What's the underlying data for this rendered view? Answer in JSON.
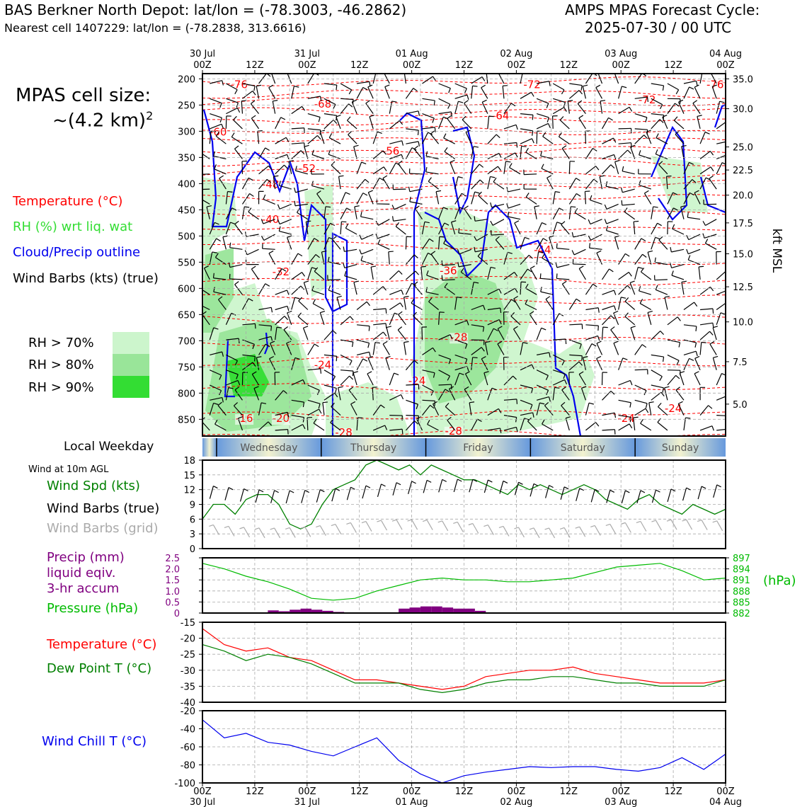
{
  "header": {
    "title_left": "BAS Berkner North Depot: lat/lon = (-78.3003, -46.2862)",
    "subtitle_left": "Nearest cell 1407229: lat/lon = (-78.2838, 313.6616)",
    "title_right_1": "AMPS MPAS Forecast Cycle:",
    "title_right_2": "2025-07-30 / 00 UTC"
  },
  "left_panel": {
    "cell_size_line1": "MPAS cell size:",
    "cell_size_line2": "~(4.2 km)",
    "cell_size_sup": "2",
    "legend_temperature": "Temperature (°C)",
    "legend_rh": "RH (%) wrt liq. wat",
    "legend_cloud": "Cloud/Precip outline",
    "legend_wind": "Wind Barbs (kts) (true)",
    "rh_levels": [
      "RH > 70%",
      "RH > 80%",
      "RH > 90%"
    ],
    "local_weekday": "Local Weekday",
    "wind_10m": "Wind at 10m AGL",
    "wind_spd": "Wind Spd (kts)",
    "wind_barbs_true": "Wind Barbs (true)",
    "wind_barbs_grid": "Wind Barbs (grid)",
    "precip_1": "Precip (mm)",
    "precip_2": "liquid eqiv.",
    "precip_3": "3-hr accum",
    "pressure": "Pressure (hPa)",
    "temperature2": "Temperature (°C)",
    "dewpoint": "Dew Point T (°C)",
    "windchill": "Wind Chill T (°C)"
  },
  "colors": {
    "temperature": "#ff0000",
    "rh_text": "#33dd33",
    "cloud": "#0000ee",
    "rh70": "#ccf5cc",
    "rh80": "#99e599",
    "rh90": "#33dd33",
    "wind_spd": "#008000",
    "grid_barb": "#aaaaaa",
    "precip": "#800080",
    "pressure": "#00bb00",
    "dewpoint": "#008000",
    "windchill": "#0000ee"
  },
  "chart_data": [
    {
      "type": "time-height",
      "x_top_labels": [
        {
          "top": "30 Jul",
          "bottom": "00Z"
        },
        {
          "top": "",
          "bottom": "12Z"
        },
        {
          "top": "31 Jul",
          "bottom": "00Z"
        },
        {
          "top": "",
          "bottom": "12Z"
        },
        {
          "top": "01 Aug",
          "bottom": "00Z"
        },
        {
          "top": "",
          "bottom": "12Z"
        },
        {
          "top": "02 Aug",
          "bottom": "00Z"
        },
        {
          "top": "",
          "bottom": "12Z"
        },
        {
          "top": "03 Aug",
          "bottom": "00Z"
        },
        {
          "top": "",
          "bottom": "12Z"
        },
        {
          "top": "04 Aug",
          "bottom": "00Z"
        }
      ],
      "pressure_ticks": [
        "200",
        "250",
        "300",
        "350",
        "400",
        "450",
        "500",
        "550",
        "600",
        "650",
        "700",
        "750",
        "800",
        "850"
      ],
      "height_ticks": [
        {
          "p": 200,
          "label": "35.0"
        },
        {
          "p": 257,
          "label": "30.0"
        },
        {
          "p": 330,
          "label": "25.0"
        },
        {
          "p": 374,
          "label": "22.5"
        },
        {
          "p": 422,
          "label": "20.0"
        },
        {
          "p": 475,
          "label": "17.5"
        },
        {
          "p": 534,
          "label": "15.0"
        },
        {
          "p": 597,
          "label": "12.5"
        },
        {
          "p": 664,
          "label": "10.0"
        },
        {
          "p": 740,
          "label": "7.5"
        },
        {
          "p": 821,
          "label": "5.0"
        }
      ],
      "height_axis_label": "kft MSL",
      "temp_contour_labels": [
        {
          "t": 7,
          "p": 218,
          "v": "-76"
        },
        {
          "t": 23,
          "p": 255,
          "v": "-68"
        },
        {
          "t": 63,
          "p": 218,
          "v": "-72"
        },
        {
          "t": 98,
          "p": 218,
          "v": "-76"
        },
        {
          "t": 57,
          "p": 277,
          "v": "-64"
        },
        {
          "t": 85,
          "p": 247,
          "v": "-72"
        },
        {
          "t": 3,
          "p": 308,
          "v": "-60"
        },
        {
          "t": 36,
          "p": 345,
          "v": "-56"
        },
        {
          "t": 20,
          "p": 378,
          "v": "-52"
        },
        {
          "t": 13,
          "p": 408,
          "v": "-48"
        },
        {
          "t": 13,
          "p": 475,
          "v": "-40"
        },
        {
          "t": 65,
          "p": 533,
          "v": "-44"
        },
        {
          "t": 15,
          "p": 575,
          "v": "-32"
        },
        {
          "t": 47,
          "p": 573,
          "v": "-36"
        },
        {
          "t": 49,
          "p": 700,
          "v": "-28"
        },
        {
          "t": 23,
          "p": 753,
          "v": "-24"
        },
        {
          "t": 41,
          "p": 783,
          "v": "-24"
        },
        {
          "t": 8,
          "p": 855,
          "v": "-16"
        },
        {
          "t": 15,
          "p": 855,
          "v": "-20"
        },
        {
          "t": 27,
          "p": 882,
          "v": "-28"
        },
        {
          "t": 48,
          "p": 879,
          "v": "-28"
        },
        {
          "t": 81,
          "p": 855,
          "v": "-24"
        },
        {
          "t": 90,
          "p": 836,
          "v": "-24"
        }
      ]
    },
    {
      "type": "bands",
      "weekdays": [
        "Wednesday",
        "Thursday",
        "Friday",
        "Saturday",
        "Sunday"
      ]
    },
    {
      "type": "line",
      "name": "wind",
      "x_hours": [
        0,
        6,
        12,
        18,
        24,
        30,
        36,
        42,
        48,
        54,
        60,
        66,
        72,
        78,
        84,
        90,
        96
      ],
      "ylim": [
        0,
        18
      ],
      "yticks": [
        0,
        3,
        6,
        9,
        12,
        15,
        18
      ],
      "wind_speed": [
        6,
        9,
        9,
        7,
        10,
        11,
        11,
        9,
        5,
        4,
        5,
        9,
        12,
        13,
        14,
        17,
        18,
        17,
        16,
        17,
        15,
        17,
        16,
        15,
        14,
        14,
        13,
        12,
        11,
        13,
        12,
        13,
        12,
        11,
        12,
        13,
        12,
        10,
        9,
        8,
        10,
        11,
        9,
        8,
        7,
        9,
        8,
        7,
        8
      ],
      "wind_speed_hours": [
        0,
        3,
        6,
        9,
        12,
        15,
        18,
        21,
        24,
        27,
        30,
        33,
        36,
        39,
        42,
        45,
        48,
        51,
        54,
        57,
        60,
        63,
        66,
        69,
        72,
        75,
        78,
        81,
        84,
        87,
        90,
        93,
        96,
        99,
        102,
        105,
        108,
        111,
        114,
        117,
        120,
        123,
        126,
        129,
        132,
        135,
        138,
        141,
        144
      ]
    },
    {
      "type": "bar-line",
      "name": "precip-pressure",
      "precip_ylim": [
        0,
        2.5
      ],
      "precip_yticks": [
        "0",
        "0.5",
        "1.0",
        "1.5",
        "2.0",
        "2.5"
      ],
      "precip_hours": [
        18,
        21,
        24,
        27,
        30,
        33,
        36,
        54,
        57,
        60,
        63,
        66,
        69,
        72,
        75
      ],
      "precip_values": [
        0.12,
        0.08,
        0.15,
        0.2,
        0.15,
        0.1,
        0.05,
        0.2,
        0.25,
        0.3,
        0.3,
        0.25,
        0.2,
        0.2,
        0.1
      ],
      "pressure_ylim": [
        882,
        897
      ],
      "pressure_yticks": [
        "882",
        "885",
        "888",
        "891",
        "894",
        "897"
      ],
      "pressure_axis_label": "(hPa)",
      "pressure_hours": [
        0,
        6,
        12,
        18,
        24,
        30,
        36,
        42,
        48,
        54,
        60,
        66,
        72,
        78,
        84,
        90,
        96,
        102,
        108,
        114,
        120,
        126,
        132,
        138,
        144
      ],
      "pressure_values": [
        895.5,
        894,
        892,
        890.5,
        888.5,
        886,
        885.5,
        886,
        888,
        889.5,
        891,
        891.5,
        891,
        891,
        890.5,
        890.5,
        891,
        891.5,
        893,
        894.5,
        895,
        895.5,
        893.5,
        891,
        891.5
      ]
    },
    {
      "type": "line",
      "name": "temperature",
      "ylim": [
        -40,
        -15
      ],
      "yticks": [
        "-40",
        "-35",
        "-30",
        "-25",
        "-20",
        "-15"
      ],
      "temp_hours": [
        0,
        6,
        12,
        18,
        24,
        30,
        36,
        42,
        48,
        54,
        60,
        66,
        72,
        78,
        84,
        90,
        96,
        102,
        108,
        114,
        120,
        126,
        132,
        138,
        144
      ],
      "temp_values": [
        -17,
        -22,
        -24,
        -23,
        -26,
        -27,
        -30,
        -33,
        -33,
        -34,
        -35,
        -36,
        -35,
        -32,
        -31,
        -30,
        -30,
        -29,
        -31,
        -32,
        -33,
        -34,
        -34,
        -34,
        -33
      ],
      "dew_values": [
        -22,
        -24,
        -27,
        -25,
        -26,
        -28,
        -31,
        -34,
        -34,
        -34,
        -36,
        -37,
        -36,
        -34,
        -33,
        -33,
        -32,
        -32,
        -33,
        -34,
        -34,
        -35,
        -35,
        -35,
        -33
      ]
    },
    {
      "type": "line",
      "name": "windchill",
      "ylim": [
        -100,
        -20
      ],
      "yticks": [
        "-100",
        "-80",
        "-60",
        "-40",
        "-20"
      ],
      "wc_hours": [
        0,
        6,
        12,
        18,
        24,
        30,
        36,
        42,
        48,
        54,
        60,
        66,
        72,
        78,
        84,
        90,
        96,
        102,
        108,
        114,
        120,
        126,
        132,
        138,
        144
      ],
      "wc_values": [
        -30,
        -50,
        -45,
        -55,
        -58,
        -65,
        -70,
        -60,
        -50,
        -75,
        -90,
        -100,
        -92,
        -88,
        -85,
        -82,
        -83,
        -82,
        -82,
        -85,
        -87,
        -83,
        -72,
        -85,
        -68
      ],
      "x_bottom_labels": [
        {
          "top": "00Z",
          "bottom": "30 Jul"
        },
        {
          "top": "12Z",
          "bottom": ""
        },
        {
          "top": "00Z",
          "bottom": "31 Jul"
        },
        {
          "top": "12Z",
          "bottom": ""
        },
        {
          "top": "00Z",
          "bottom": "01 Aug"
        },
        {
          "top": "12Z",
          "bottom": ""
        },
        {
          "top": "00Z",
          "bottom": "02 Aug"
        },
        {
          "top": "12Z",
          "bottom": ""
        },
        {
          "top": "00Z",
          "bottom": "03 Aug"
        },
        {
          "top": "12Z",
          "bottom": ""
        },
        {
          "top": "00Z",
          "bottom": "04 Aug"
        }
      ]
    }
  ]
}
